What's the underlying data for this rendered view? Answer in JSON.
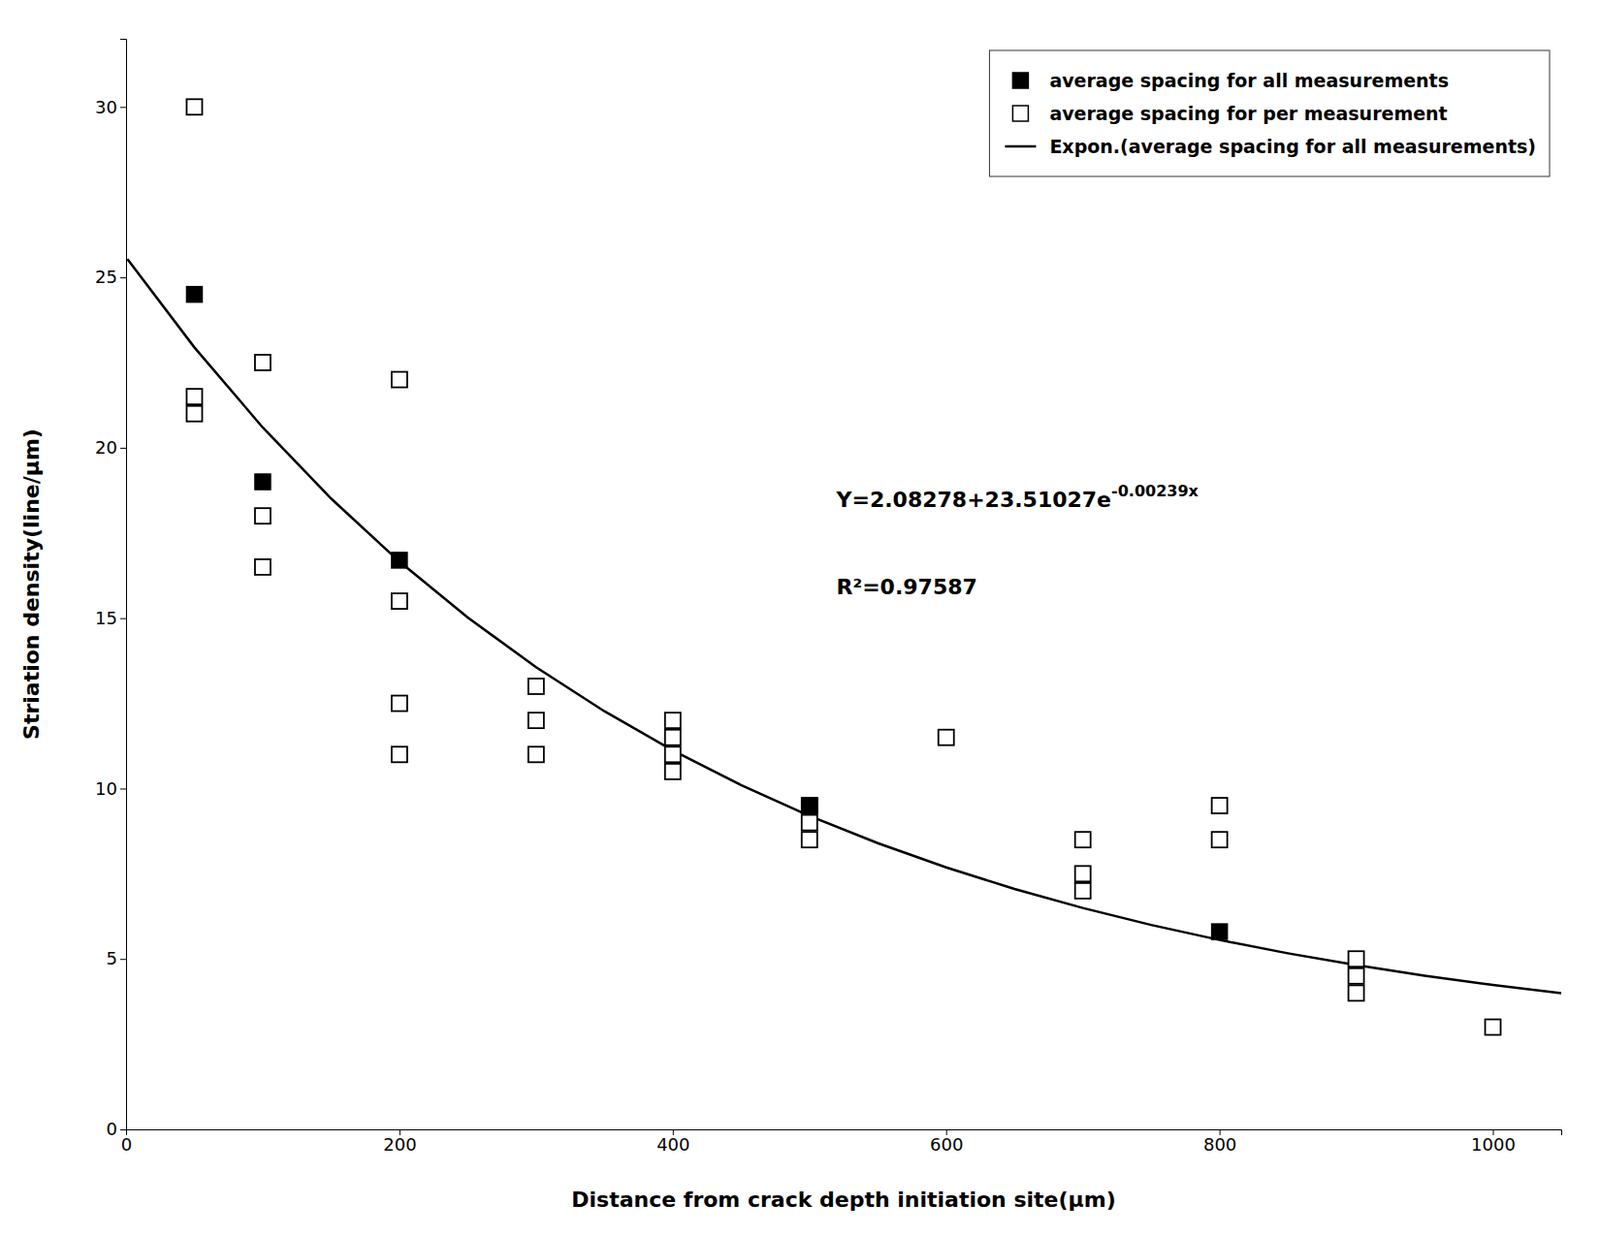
{
  "chart_data": {
    "type": "scatter",
    "xlabel": "Distance from crack depth initiation site(μm)",
    "ylabel": "Striation density(line/μm)",
    "xlim": [
      0,
      1050
    ],
    "ylim": [
      0,
      32
    ],
    "xticks": [
      0,
      200,
      400,
      600,
      800,
      1000
    ],
    "yticks": [
      0,
      5,
      10,
      15,
      20,
      25,
      30
    ],
    "grid": false,
    "legend": "upper right",
    "series": [
      {
        "name": "average spacing for all measurements",
        "type": "scatter",
        "marker": "square",
        "color": "black",
        "x": [
          50,
          100,
          200,
          500,
          800
        ],
        "values": [
          24.5,
          19.0,
          16.7,
          9.5,
          5.8
        ]
      },
      {
        "name": "average spacing for per measurement",
        "type": "scatter",
        "marker": "square-open",
        "color": "black",
        "x": [
          50,
          50,
          50,
          100,
          100,
          100,
          200,
          200,
          200,
          200,
          300,
          300,
          300,
          400,
          400,
          400,
          400,
          500,
          500,
          500,
          600,
          700,
          700,
          700,
          800,
          800,
          900,
          900,
          900,
          1000
        ],
        "values": [
          30.0,
          21.5,
          21.0,
          22.5,
          18.0,
          16.5,
          22.0,
          15.5,
          12.5,
          11.0,
          13.0,
          12.0,
          11.0,
          12.0,
          11.5,
          11.0,
          10.5,
          9.5,
          9.0,
          8.5,
          11.5,
          8.5,
          7.5,
          7.0,
          9.5,
          8.5,
          5.0,
          4.5,
          4.0,
          3.0
        ]
      },
      {
        "name": "Expon.(average spacing for all measurements)",
        "type": "line",
        "line_style": "solid",
        "color": "black",
        "x": [
          1,
          50,
          100,
          150,
          200,
          250,
          300,
          350,
          400,
          450,
          500,
          550,
          600,
          650,
          700,
          750,
          800,
          850,
          900,
          950,
          1000,
          1050
        ],
        "values": [
          25.53693,
          22.94495,
          20.59512,
          18.50995,
          16.65966,
          15.0178,
          13.56082,
          12.26802,
          11.12079,
          10.10279,
          9.19943,
          8.39783,
          7.68655,
          7.05534,
          6.49526,
          5.99825,
          5.55725,
          5.16589,
          4.81862,
          4.51045,
          4.23703,
          3.99438
        ]
      }
    ],
    "annotations": [
      {
        "text": "Y=2.08278+23.51027e",
        "superscript": "-0.00239x"
      },
      {
        "text": "R²=0.97587"
      }
    ]
  }
}
